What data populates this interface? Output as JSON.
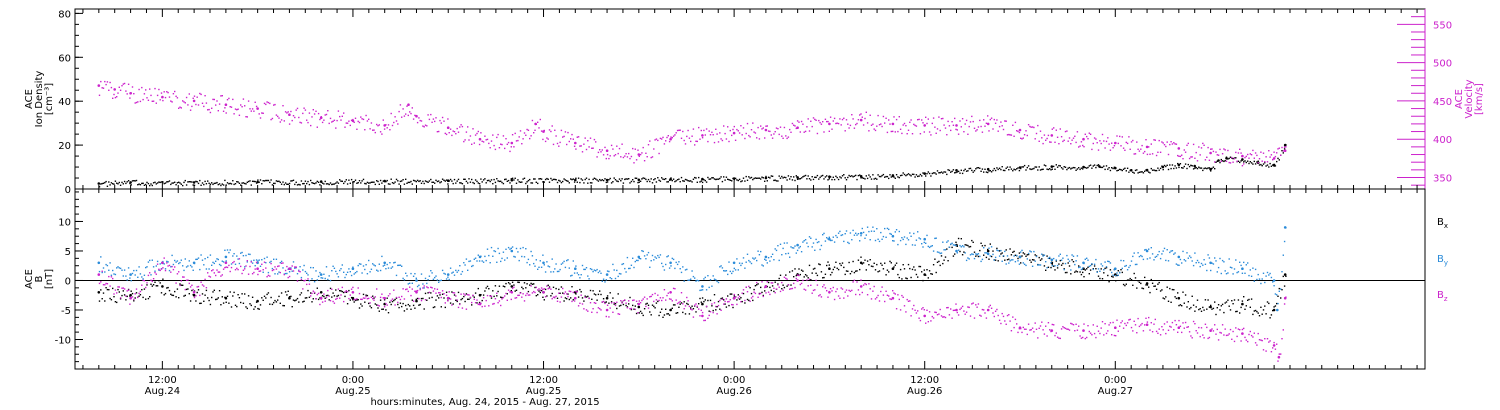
{
  "chart_data": [
    {
      "type": "scatter",
      "panel": "top",
      "ylabel_lines": [
        "ACE",
        "Ion Density",
        "[cm⁻³]"
      ],
      "ylim": [
        0,
        82
      ],
      "yticks": [
        0,
        20,
        40,
        60,
        80
      ],
      "y2label_lines": [
        "ACE",
        "Velocity",
        "[km/s]"
      ],
      "y2lim": [
        335,
        570
      ],
      "y2ticks": [
        350,
        400,
        450,
        500,
        550
      ],
      "colors": {
        "density": "#000000",
        "velocity": "#cc22cc"
      },
      "series": [
        {
          "key": "density",
          "axis": "left",
          "x": [
            8,
            10,
            14,
            18,
            22,
            26,
            30,
            34,
            38,
            40,
            42,
            44,
            46,
            48,
            50,
            52,
            54,
            56,
            58,
            60,
            62,
            64,
            66,
            68,
            70,
            71,
            72,
            73,
            74,
            75,
            76,
            77,
            78,
            78.5,
            79,
            80,
            81,
            82,
            82.7
          ],
          "y": [
            2.5,
            3,
            3,
            3.2,
            3.4,
            3.6,
            3.8,
            4,
            4.1,
            4.1,
            4.2,
            4.4,
            4.5,
            4.8,
            5,
            5.3,
            5.6,
            5.8,
            6.2,
            7,
            8.5,
            9,
            9.8,
            10.2,
            10,
            10.3,
            9.5,
            8.5,
            8.6,
            10,
            11,
            10.5,
            9,
            13,
            14,
            13.5,
            12,
            11,
            20
          ]
        },
        {
          "key": "velocity",
          "axis": "right",
          "x": [
            8,
            9,
            10,
            12,
            14,
            16,
            18,
            20,
            22,
            24,
            26,
            27.5,
            28,
            30,
            32,
            34,
            35.5,
            36,
            38,
            40,
            42,
            44,
            46,
            48,
            50,
            52,
            54,
            56,
            58,
            60,
            62,
            64,
            66,
            68,
            70,
            72,
            74,
            76,
            78,
            80,
            82,
            82.7
          ],
          "y": [
            470,
            465,
            460,
            455,
            450,
            445,
            440,
            432,
            428,
            424,
            418,
            445,
            430,
            415,
            400,
            395,
            420,
            410,
            395,
            385,
            380,
            400,
            405,
            408,
            412,
            415,
            420,
            425,
            420,
            418,
            418,
            420,
            412,
            405,
            400,
            395,
            390,
            388,
            382,
            378,
            375,
            385
          ]
        }
      ]
    },
    {
      "type": "scatter",
      "panel": "bottom",
      "ylabel_lines": [
        "ACE",
        "B",
        "[nT]"
      ],
      "ylim": [
        -15,
        15.5
      ],
      "yticks": [
        -10,
        -5,
        0,
        5,
        10
      ],
      "zero_line": true,
      "colors": {
        "bx": "#000000",
        "by": "#2a8bd9",
        "bz": "#cc22cc"
      },
      "series": [
        {
          "key": "bx",
          "legend": "B_x",
          "x": [
            8,
            10,
            12,
            14,
            16,
            18,
            20,
            22,
            24,
            26,
            28,
            30,
            32,
            34,
            36,
            38,
            40,
            42,
            44,
            46,
            48,
            50,
            52,
            54,
            56,
            58,
            60,
            62,
            64,
            66,
            68,
            70,
            72,
            74,
            76,
            78,
            80,
            82,
            82.7
          ],
          "y": [
            -2,
            -2.5,
            -1,
            -2.5,
            -3,
            -3.5,
            -3,
            -2,
            -3,
            -4,
            -3.5,
            -3,
            -2.5,
            -1,
            -2,
            -2,
            -3,
            -4.5,
            -5,
            -4,
            -3,
            -1,
            1,
            2,
            3,
            2,
            1,
            6,
            5,
            4,
            3,
            2,
            1,
            -0.5,
            -3,
            -4.5,
            -4,
            -5,
            1
          ]
        },
        {
          "key": "by",
          "legend": "B_y",
          "x": [
            8,
            10,
            12,
            14,
            16,
            18,
            20,
            22,
            24,
            26,
            28,
            30,
            32,
            34,
            36,
            38,
            40,
            42,
            44,
            46,
            48,
            50,
            52,
            54,
            56,
            58,
            60,
            62,
            64,
            66,
            68,
            70,
            72,
            74,
            76,
            78,
            80,
            82,
            82.2,
            82.7
          ],
          "y": [
            3,
            1,
            3,
            3,
            4,
            3,
            2,
            1,
            2,
            3,
            0,
            1,
            4,
            5,
            3,
            2,
            1,
            4,
            3,
            -1,
            3,
            4,
            6,
            7,
            8,
            7.5,
            7,
            5,
            4.5,
            4,
            3.5,
            3,
            2,
            5,
            4,
            3,
            2,
            0,
            -5,
            9
          ]
        },
        {
          "key": "bz",
          "legend": "B_z",
          "x": [
            8,
            10,
            12,
            14,
            16,
            18,
            20,
            22,
            24,
            26,
            28,
            30,
            32,
            34,
            36,
            38,
            40,
            42,
            44,
            46,
            48,
            50,
            52,
            54,
            56,
            58,
            60,
            62,
            64,
            66,
            68,
            70,
            72,
            74,
            76,
            78,
            80,
            82,
            82.3,
            82.7
          ],
          "y": [
            1,
            -3,
            3,
            -2,
            3,
            2,
            2,
            -3,
            -2,
            -3,
            -2,
            -3,
            -4,
            -2,
            -2,
            -3,
            -5,
            -4,
            -2,
            -6,
            -3,
            -1,
            0,
            -2,
            -1,
            -3,
            -6,
            -5,
            -5,
            -8,
            -8.5,
            -8.5,
            -8,
            -7.5,
            -8,
            -8.5,
            -9,
            -11,
            -13,
            -3
          ]
        }
      ]
    }
  ],
  "x_axis": {
    "xlim": [
      6.5,
      91.5
    ],
    "ticks": [
      {
        "x": 12,
        "time": "12:00",
        "date": "Aug.24"
      },
      {
        "x": 24,
        "time": "0:00",
        "date": "Aug.25"
      },
      {
        "x": 36,
        "time": "12:00",
        "date": "Aug.25"
      },
      {
        "x": 48,
        "time": "0:00",
        "date": "Aug.26"
      },
      {
        "x": 60,
        "time": "12:00",
        "date": "Aug.26"
      },
      {
        "x": 72,
        "time": "0:00",
        "date": "Aug.27"
      }
    ],
    "minor_step": 1,
    "title": "hours:minutes, Aug. 24, 2015 - Aug. 27, 2015"
  }
}
